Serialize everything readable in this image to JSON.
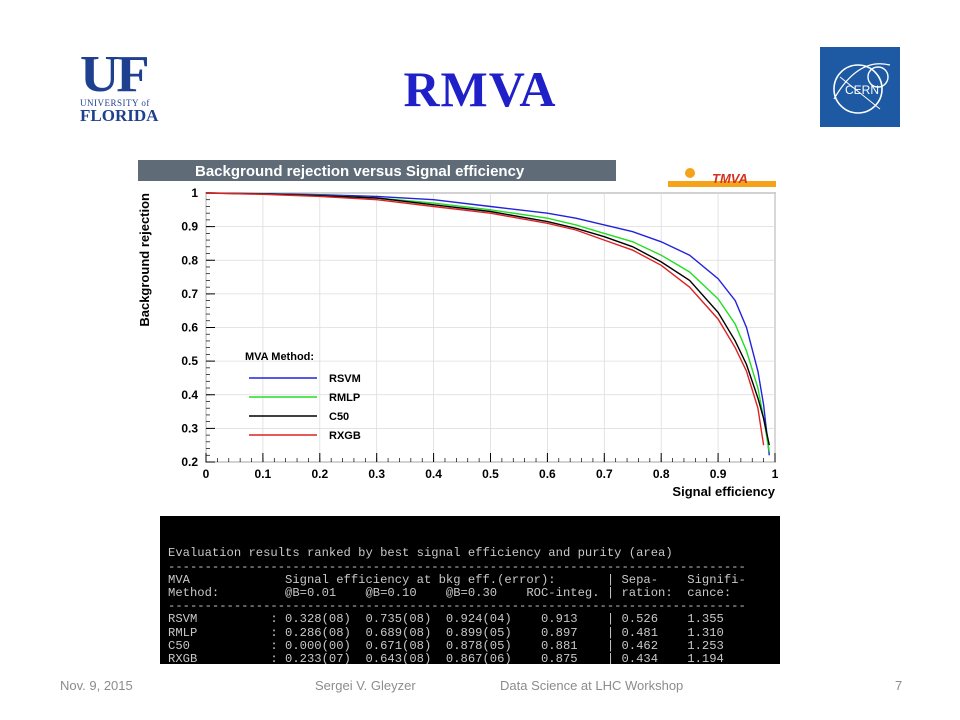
{
  "slide": {
    "title": "RMVA",
    "footer_date": "Nov. 9, 2015",
    "footer_author": "Sergei V. Gleyzer",
    "footer_event": "Data Science at LHC Workshop",
    "page_number": "7"
  },
  "logos": {
    "uf_big": "UF",
    "uf_small": "UNIVERSITY of",
    "uf_state": "FLORIDA",
    "cern": "CERN",
    "tmva": "TMVA"
  },
  "colors": {
    "title": "#1f20c8",
    "RSVM": "#2222dd",
    "RMLP": "#22dd22",
    "C50": "#000000",
    "RXGB": "#dd2222"
  },
  "chart_data": {
    "type": "line",
    "title": "Background rejection versus Signal efficiency",
    "xlabel": "Signal efficiency",
    "ylabel": "Background rejection",
    "xlim": [
      0,
      1
    ],
    "ylim": [
      0.2,
      1
    ],
    "xticks": [
      "0",
      "0.1",
      "0.2",
      "0.3",
      "0.4",
      "0.5",
      "0.6",
      "0.7",
      "0.8",
      "0.9",
      "1"
    ],
    "yticks": [
      "0.2",
      "0.3",
      "0.4",
      "0.5",
      "0.6",
      "0.7",
      "0.8",
      "0.9",
      "1"
    ],
    "grid": true,
    "legend_title": "MVA Method:",
    "legend_position": "bottom-left",
    "series": [
      {
        "name": "RSVM",
        "x": [
          0,
          0.1,
          0.2,
          0.3,
          0.4,
          0.5,
          0.6,
          0.65,
          0.7,
          0.75,
          0.8,
          0.85,
          0.9,
          0.93,
          0.95,
          0.97,
          0.98,
          0.99
        ],
        "y": [
          1.0,
          0.998,
          0.995,
          0.99,
          0.98,
          0.96,
          0.94,
          0.925,
          0.905,
          0.885,
          0.855,
          0.815,
          0.745,
          0.68,
          0.6,
          0.47,
          0.37,
          0.22
        ]
      },
      {
        "name": "RMLP",
        "x": [
          0,
          0.1,
          0.2,
          0.3,
          0.4,
          0.5,
          0.6,
          0.65,
          0.7,
          0.75,
          0.8,
          0.85,
          0.9,
          0.93,
          0.95,
          0.97,
          0.98,
          0.99
        ],
        "y": [
          1.0,
          0.997,
          0.993,
          0.985,
          0.97,
          0.95,
          0.925,
          0.905,
          0.88,
          0.855,
          0.815,
          0.765,
          0.685,
          0.61,
          0.53,
          0.42,
          0.33,
          0.23
        ]
      },
      {
        "name": "C50",
        "x": [
          0,
          0.1,
          0.2,
          0.3,
          0.4,
          0.5,
          0.6,
          0.65,
          0.7,
          0.75,
          0.8,
          0.85,
          0.9,
          0.93,
          0.95,
          0.97,
          0.98,
          0.99
        ],
        "y": [
          1.0,
          0.997,
          0.992,
          0.985,
          0.965,
          0.945,
          0.915,
          0.895,
          0.87,
          0.84,
          0.795,
          0.74,
          0.645,
          0.56,
          0.49,
          0.39,
          0.33,
          0.25
        ]
      },
      {
        "name": "RXGB",
        "x": [
          0,
          0.1,
          0.2,
          0.3,
          0.4,
          0.5,
          0.6,
          0.65,
          0.7,
          0.75,
          0.8,
          0.85,
          0.9,
          0.93,
          0.95,
          0.97,
          0.98
        ],
        "y": [
          1.0,
          0.996,
          0.99,
          0.98,
          0.96,
          0.94,
          0.91,
          0.89,
          0.86,
          0.83,
          0.785,
          0.72,
          0.625,
          0.54,
          0.47,
          0.36,
          0.25
        ]
      }
    ]
  },
  "results_table": {
    "lines": [
      "Evaluation results ranked by best signal efficiency and purity (area)",
      "-------------------------------------------------------------------------------",
      "MVA             Signal efficiency at bkg eff.(error):       | Sepa-    Signifi-",
      "Method:         @B=0.01    @B=0.10    @B=0.30    ROC-integ. | ration:  cance:",
      "-------------------------------------------------------------------------------",
      "RSVM          : 0.328(08)  0.735(08)  0.924(04)    0.913    | 0.526    1.355",
      "RMLP          : 0.286(08)  0.689(08)  0.899(05)    0.897    | 0.481    1.310",
      "C50           : 0.000(00)  0.671(08)  0.878(05)    0.881    | 0.462    1.253",
      "RXGB          : 0.233(07)  0.643(08)  0.867(06)    0.875    | 0.434    1.194",
      "-------------------------------------------------------------------------------"
    ]
  }
}
